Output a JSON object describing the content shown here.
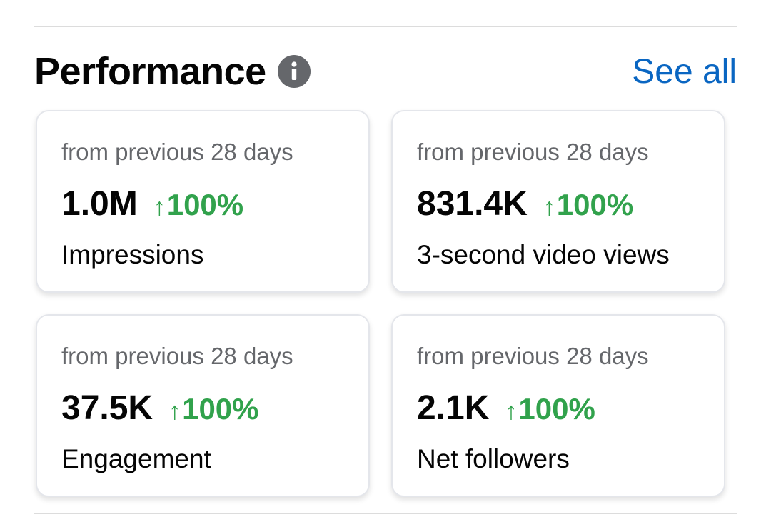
{
  "header": {
    "title": "Performance",
    "see_all_label": "See all"
  },
  "cards": [
    {
      "period": "from previous 28 days",
      "value": "1.0M",
      "delta": "100%",
      "metric": "Impressions"
    },
    {
      "period": "from previous 28 days",
      "value": "831.4K",
      "delta": "100%",
      "metric": "3-second video views"
    },
    {
      "period": "from previous 28 days",
      "value": "37.5K",
      "delta": "100%",
      "metric": "Engagement"
    },
    {
      "period": "from previous 28 days",
      "value": "2.1K",
      "delta": "100%",
      "metric": "Net followers"
    }
  ],
  "icons": {
    "info": "info-icon",
    "delta_arrow": "arrow-up-icon"
  },
  "colors": {
    "accent_link": "#0a66c2",
    "positive_delta": "#31a24c",
    "secondary_text": "#65676b"
  }
}
